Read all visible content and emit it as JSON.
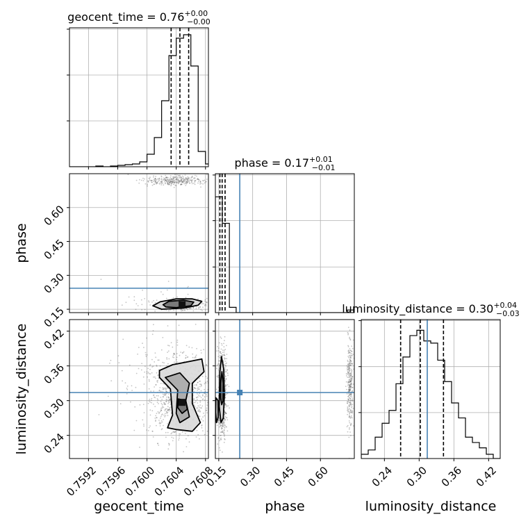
{
  "chart_data": {
    "type": "corner",
    "parameters": [
      "geocent_time",
      "phase",
      "luminosity_distance"
    ],
    "truth": {
      "geocent_time": null,
      "phase": 0.243,
      "luminosity_distance": 0.314
    },
    "colors": {
      "truth": "#4682b4",
      "hist": "#000000",
      "grid": "#b0b0b0",
      "scatter": "#555555"
    },
    "panels": [
      {
        "row": 0,
        "col": 0,
        "kind": "hist1d",
        "title_main": "geocent_time = 0.76",
        "title_sup": "+0.00",
        "title_sub": "−0.00",
        "range": [
          0.75894,
          0.76084
        ],
        "bin_edges": [
          0.7589,
          0.759,
          0.7591,
          0.7592,
          0.7593,
          0.7594,
          0.7595,
          0.7596,
          0.7597,
          0.7598,
          0.7599,
          0.76,
          0.7601,
          0.7602,
          0.7603,
          0.7604,
          0.7605,
          0.7606,
          0.7607,
          0.7608,
          0.7609
        ],
        "counts": [
          0,
          0,
          0,
          0,
          1,
          0,
          1,
          2,
          3,
          4,
          7,
          18,
          42,
          95,
          160,
          185,
          190,
          145,
          22,
          4
        ],
        "quantiles": [
          0.76033,
          0.76045,
          0.76057
        ],
        "ylim": [
          0,
          200
        ]
      },
      {
        "row": 1,
        "col": 1,
        "kind": "hist1d",
        "title_main": "phase = 0.17",
        "title_sup": "+0.01",
        "title_sub": "−0.01",
        "range": [
          0.135,
          0.75
        ],
        "bin_edges": [
          0.135,
          0.166,
          0.197,
          0.227,
          0.258,
          0.289,
          0.32,
          0.35,
          0.381,
          0.412,
          0.443,
          0.473,
          0.504,
          0.535,
          0.565,
          0.596,
          0.627,
          0.658,
          0.688,
          0.719,
          0.75
        ],
        "counts": [
          175,
          135,
          8,
          0,
          0,
          0,
          0,
          0,
          0,
          0,
          0,
          0,
          0,
          0,
          0,
          0,
          0,
          0,
          0,
          4
        ],
        "quantiles": [
          0.155,
          0.165,
          0.178
        ],
        "ylim": [
          0,
          210
        ]
      },
      {
        "row": 2,
        "col": 2,
        "kind": "hist1d",
        "title_main": "luminosity_distance = 0.30",
        "title_sup": "+0.04",
        "title_sub": "−0.03",
        "range": [
          0.2,
          0.44
        ],
        "bin_edges": [
          0.2,
          0.212,
          0.224,
          0.236,
          0.248,
          0.26,
          0.272,
          0.284,
          0.296,
          0.308,
          0.32,
          0.332,
          0.344,
          0.356,
          0.368,
          0.38,
          0.392,
          0.404,
          0.416,
          0.428,
          0.44
        ],
        "counts": [
          4,
          8,
          20,
          33,
          45,
          70,
          95,
          115,
          120,
          110,
          108,
          92,
          72,
          52,
          38,
          20,
          15,
          10,
          4,
          0
        ],
        "quantiles": [
          0.268,
          0.302,
          0.342
        ],
        "ylim": [
          0,
          130
        ]
      },
      {
        "row": 1,
        "col": 0,
        "kind": "hist2d",
        "xlim": [
          0.75894,
          0.76084
        ],
        "ylim": [
          0.135,
          0.75
        ],
        "clusters": [
          {
            "cx": 0.7604,
            "cy": 0.72,
            "sx": 0.00023,
            "sy": 0.012,
            "n": 320
          },
          {
            "cx": 0.76045,
            "cy": 0.17,
            "sx": 0.00018,
            "sy": 0.012,
            "n": 420
          },
          {
            "cx": 0.76,
            "cy": 0.2,
            "sx": 0.0004,
            "sy": 0.04,
            "n": 30
          }
        ],
        "contours": [
          {
            "level": "outer",
            "points": [
              [
                0.76008,
                0.165
              ],
              [
                0.76018,
                0.183
              ],
              [
                0.7604,
                0.196
              ],
              [
                0.76062,
                0.196
              ],
              [
                0.76075,
                0.185
              ],
              [
                0.7607,
                0.168
              ],
              [
                0.7605,
                0.155
              ],
              [
                0.7602,
                0.15
              ]
            ]
          },
          {
            "level": "inner",
            "points": [
              [
                0.76022,
                0.17
              ],
              [
                0.7603,
                0.185
              ],
              [
                0.7605,
                0.19
              ],
              [
                0.76064,
                0.182
              ],
              [
                0.7606,
                0.165
              ],
              [
                0.7604,
                0.157
              ],
              [
                0.76026,
                0.16
              ]
            ]
          }
        ],
        "peak": [
          0.76048,
          0.17
        ]
      },
      {
        "row": 2,
        "col": 0,
        "kind": "hist2d",
        "xlim": [
          0.75894,
          0.76084
        ],
        "ylim": [
          0.2,
          0.44
        ],
        "clusters": [
          {
            "cx": 0.76045,
            "cy": 0.31,
            "sx": 0.00022,
            "sy": 0.035,
            "n": 900
          },
          {
            "cx": 0.7602,
            "cy": 0.34,
            "sx": 0.0004,
            "sy": 0.05,
            "n": 120
          }
        ],
        "contours": [
          {
            "level": "outer",
            "points": [
              [
                0.76017,
                0.352
              ],
              [
                0.76035,
                0.362
              ],
              [
                0.76075,
                0.372
              ],
              [
                0.76078,
                0.35
              ],
              [
                0.76062,
                0.33
              ],
              [
                0.76062,
                0.295
              ],
              [
                0.76073,
                0.262
              ],
              [
                0.76062,
                0.247
              ],
              [
                0.7604,
                0.25
              ],
              [
                0.76028,
                0.253
              ],
              [
                0.76035,
                0.275
              ],
              [
                0.76032,
                0.32
              ],
              [
                0.76017,
                0.34
              ]
            ]
          },
          {
            "level": "middle",
            "points": [
              [
                0.76025,
                0.34
              ],
              [
                0.76045,
                0.348
              ],
              [
                0.76058,
                0.33
              ],
              [
                0.76053,
                0.3
              ],
              [
                0.76058,
                0.272
              ],
              [
                0.76045,
                0.262
              ],
              [
                0.7604,
                0.278
              ],
              [
                0.76042,
                0.318
              ]
            ]
          },
          {
            "level": "inner",
            "points": [
              [
                0.76043,
                0.303
              ],
              [
                0.76053,
                0.3
              ],
              [
                0.76055,
                0.285
              ],
              [
                0.76048,
                0.278
              ],
              [
                0.76042,
                0.288
              ]
            ]
          }
        ],
        "peak": [
          0.76048,
          0.297
        ]
      },
      {
        "row": 2,
        "col": 1,
        "kind": "hist2d",
        "xlim": [
          0.135,
          0.75
        ],
        "ylim": [
          0.2,
          0.44
        ],
        "clusters": [
          {
            "cx": 0.165,
            "cy": 0.31,
            "sx": 0.01,
            "sy": 0.04,
            "n": 620
          },
          {
            "cx": 0.73,
            "cy": 0.33,
            "sx": 0.007,
            "sy": 0.04,
            "n": 300
          }
        ],
        "contours": [
          {
            "level": "outer",
            "points": [
              [
                0.155,
                0.35
              ],
              [
                0.162,
                0.376
              ],
              [
                0.172,
                0.355
              ],
              [
                0.175,
                0.31
              ],
              [
                0.17,
                0.27
              ],
              [
                0.16,
                0.262
              ],
              [
                0.152,
                0.29
              ]
            ]
          },
          {
            "level": "inner",
            "points": [
              [
                0.158,
                0.33
              ],
              [
                0.164,
                0.35
              ],
              [
                0.17,
                0.33
              ],
              [
                0.169,
                0.3
              ],
              [
                0.163,
                0.293
              ],
              [
                0.158,
                0.305
              ]
            ]
          },
          {
            "level": "lower",
            "points": [
              [
                0.137,
                0.305
              ],
              [
                0.147,
                0.3
              ],
              [
                0.148,
                0.272
              ],
              [
                0.14,
                0.262
              ],
              [
                0.136,
                0.28
              ]
            ]
          }
        ],
        "peak": null
      }
    ],
    "axes": {
      "geocent_time": {
        "label": "geocent_time",
        "ticks": [
          0.7592,
          0.7596,
          0.76,
          0.7604,
          0.7608
        ],
        "tick_labels": [
          "0.7592",
          "0.7596",
          "0.7600",
          "0.7604",
          "0.7608"
        ]
      },
      "phase": {
        "label": "phase",
        "ticks": [
          0.15,
          0.3,
          0.45,
          0.6
        ],
        "tick_labels": [
          "0.15",
          "0.30",
          "0.45",
          "0.60"
        ]
      },
      "luminosity_distance": {
        "label": "luminosity_distance",
        "ticks": [
          0.24,
          0.3,
          0.36,
          0.42
        ],
        "tick_labels": [
          "0.24",
          "0.30",
          "0.36",
          "0.42"
        ]
      }
    },
    "grid": true
  }
}
